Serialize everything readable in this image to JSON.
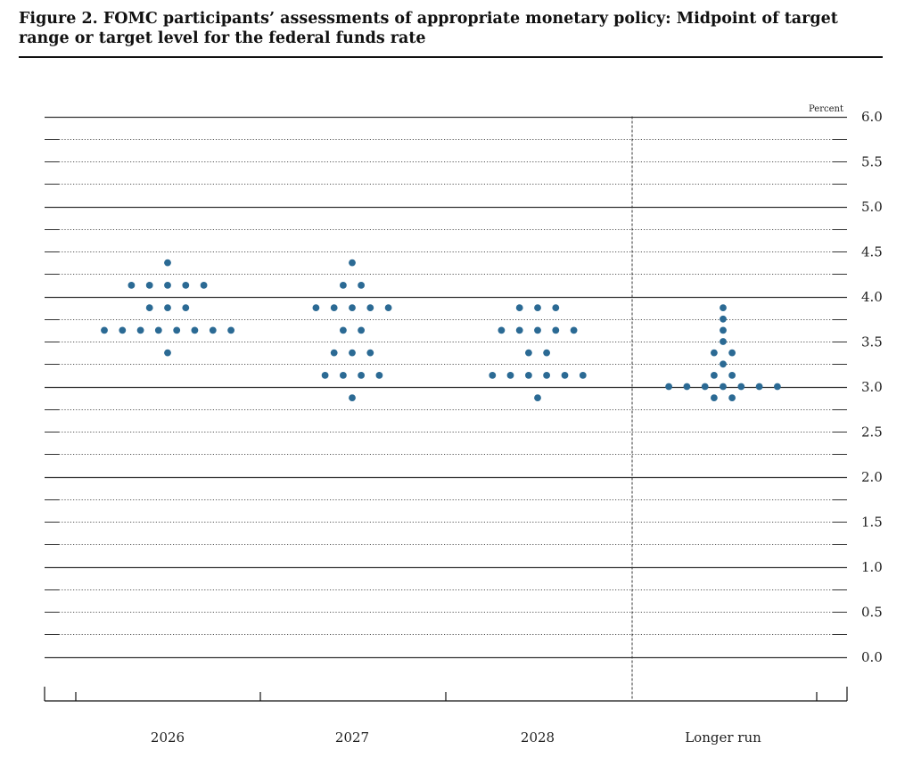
{
  "figure": {
    "title": "Figure 2. FOMC participants’ assessments of appropriate monetary policy: Midpoint of target range or target level for the federal funds rate"
  },
  "colors": {
    "dot": "#2b6a94",
    "major_line": "#333333",
    "minor_line": "#555555"
  },
  "chart_data": {
    "type": "scatter",
    "unit_label": "Percent",
    "ylim": [
      0.0,
      6.0
    ],
    "yticks": [
      "6.0",
      "5.5",
      "5.0",
      "4.5",
      "4.0",
      "3.5",
      "3.0",
      "2.5",
      "2.0",
      "1.5",
      "1.0",
      "0.5",
      "0.0"
    ],
    "categories": [
      "2026",
      "2027",
      "2028",
      "Longer run"
    ],
    "grid": true,
    "series": [
      {
        "category": "2026",
        "points": [
          {
            "y": 4.375,
            "count": 1
          },
          {
            "y": 4.125,
            "count": 5
          },
          {
            "y": 3.875,
            "count": 3
          },
          {
            "y": 3.625,
            "count": 8
          },
          {
            "y": 3.375,
            "count": 1
          }
        ]
      },
      {
        "category": "2027",
        "points": [
          {
            "y": 4.375,
            "count": 1
          },
          {
            "y": 4.125,
            "count": 2
          },
          {
            "y": 3.875,
            "count": 5
          },
          {
            "y": 3.625,
            "count": 2
          },
          {
            "y": 3.375,
            "count": 3
          },
          {
            "y": 3.125,
            "count": 4
          },
          {
            "y": 2.875,
            "count": 1
          }
        ]
      },
      {
        "category": "2028",
        "points": [
          {
            "y": 3.875,
            "count": 3
          },
          {
            "y": 3.625,
            "count": 5
          },
          {
            "y": 3.375,
            "count": 2
          },
          {
            "y": 3.125,
            "count": 6
          },
          {
            "y": 2.875,
            "count": 1
          }
        ]
      },
      {
        "category": "Longer run",
        "points": [
          {
            "y": 3.875,
            "count": 1
          },
          {
            "y": 3.75,
            "count": 1
          },
          {
            "y": 3.625,
            "count": 1
          },
          {
            "y": 3.5,
            "count": 1
          },
          {
            "y": 3.375,
            "count": 2
          },
          {
            "y": 3.25,
            "count": 1
          },
          {
            "y": 3.125,
            "count": 2
          },
          {
            "y": 3.0,
            "count": 7
          },
          {
            "y": 2.875,
            "count": 2
          }
        ]
      }
    ]
  }
}
